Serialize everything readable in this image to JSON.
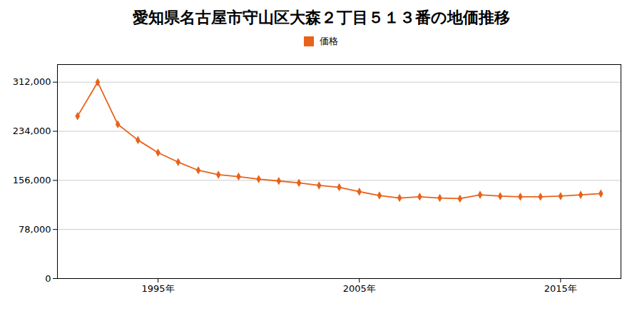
{
  "chart_data": {
    "type": "line",
    "title": "愛知県名古屋市守山区大森２丁目５１３番の地価推移",
    "x": [
      1991,
      1992,
      1993,
      1994,
      1995,
      1996,
      1997,
      1998,
      1999,
      2000,
      2001,
      2002,
      2003,
      2004,
      2005,
      2006,
      2007,
      2008,
      2009,
      2010,
      2011,
      2012,
      2013,
      2014,
      2015,
      2016,
      2017
    ],
    "series": [
      {
        "name": "価格",
        "color": "#E8621A",
        "marker": "diamond",
        "values": [
          258000,
          312000,
          245000,
          220000,
          200000,
          185000,
          172000,
          165000,
          162000,
          158000,
          155000,
          152000,
          148000,
          145000,
          138000,
          132000,
          128000,
          130000,
          128000,
          127000,
          133000,
          131000,
          130000,
          130000,
          131000,
          133000,
          135000
        ]
      }
    ],
    "xlim": [
      1990,
      2018
    ],
    "xticks": [
      {
        "value": 1995,
        "label": "1995年"
      },
      {
        "value": 2005,
        "label": "2005年"
      },
      {
        "value": 2015,
        "label": "2015年"
      }
    ],
    "ylim": [
      0,
      340000
    ],
    "yticks": [
      0,
      {
        "value": 78000,
        "label": "78,000"
      },
      {
        "value": 156000,
        "label": "156,000"
      },
      {
        "value": 234000,
        "label": "234,000"
      },
      {
        "value": 312000,
        "label": "312,000"
      }
    ],
    "grid": true,
    "legend": "top"
  }
}
